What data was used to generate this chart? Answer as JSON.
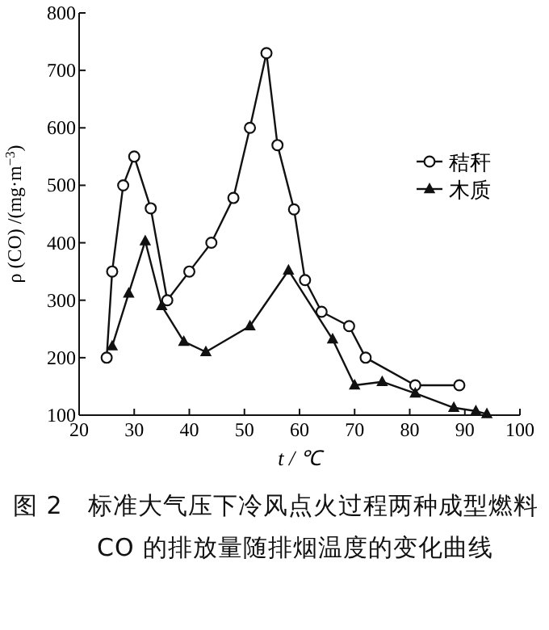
{
  "chart_data": {
    "type": "line",
    "title": "图 2　标准大气压下冷风点火过程两种成型燃料 CO 的排放量随排烟温度的变化曲线",
    "xlabel": "t / ℃",
    "ylabel": "ρ (CO) /(mg·m$^{−3}$)",
    "xlim": [
      20,
      100
    ],
    "xticks": [
      20,
      30,
      40,
      50,
      60,
      70,
      80,
      90,
      100
    ],
    "ylim": [
      100,
      800
    ],
    "yticks": [
      100,
      200,
      300,
      400,
      500,
      600,
      700,
      800
    ],
    "legend": "top right",
    "grid": false,
    "series": [
      {
        "name": "秸秆",
        "color": "#111111",
        "marker": "circle",
        "x": [
          25,
          26,
          28,
          30,
          33,
          36,
          40,
          44,
          48,
          51,
          54,
          56,
          59,
          61,
          64,
          69,
          72,
          81,
          89
        ],
        "values": [
          200,
          350,
          500,
          550,
          460,
          300,
          350,
          400,
          478,
          600,
          730,
          570,
          458,
          335,
          280,
          255,
          200,
          152,
          152
        ]
      },
      {
        "name": "木质",
        "color": "#111111",
        "marker": "triangle",
        "x": [
          26,
          29,
          32,
          35,
          39,
          43,
          51,
          58,
          66,
          70,
          75,
          81,
          88,
          92,
          94
        ],
        "values": [
          220,
          312,
          403,
          290,
          228,
          210,
          255,
          352,
          232,
          152,
          158,
          138,
          113,
          107,
          102
        ]
      }
    ]
  }
}
